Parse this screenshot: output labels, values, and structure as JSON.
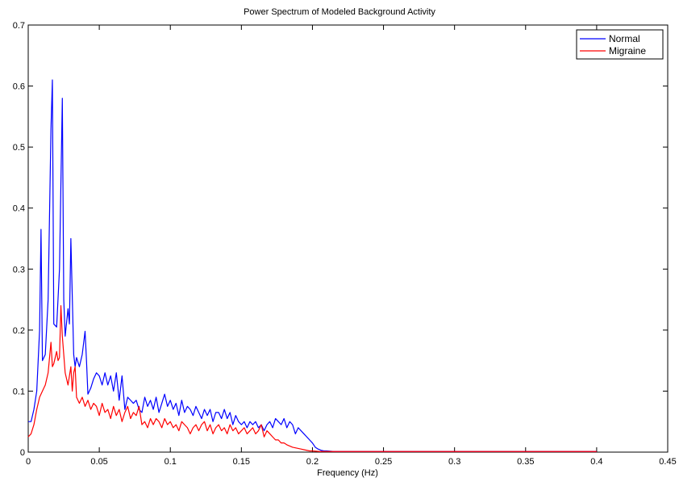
{
  "chart_data": {
    "type": "line",
    "title": "Power Spectrum of Modeled Background Activity",
    "xlabel": "Frequency (Hz)",
    "ylabel": "",
    "xlim": [
      0,
      0.45
    ],
    "ylim": [
      0,
      0.7
    ],
    "xticks": [
      0,
      0.05,
      0.1,
      0.15,
      0.2,
      0.25,
      0.3,
      0.35,
      0.4,
      0.45
    ],
    "xtick_labels": [
      "0",
      "0.05",
      "0.1",
      "0.15",
      "0.2",
      "0.25",
      "0.3",
      "0.35",
      "0.4",
      "0.45"
    ],
    "yticks": [
      0,
      0.1,
      0.2,
      0.3,
      0.4,
      0.5,
      0.6,
      0.7
    ],
    "ytick_labels": [
      "0",
      "0.1",
      "0.2",
      "0.3",
      "0.4",
      "0.5",
      "0.6",
      "0.7"
    ],
    "grid": false,
    "legend_position": "top-right",
    "series": [
      {
        "name": "Normal",
        "color": "#0000ff",
        "x": [
          0.0,
          0.002,
          0.004,
          0.006,
          0.008,
          0.009,
          0.01,
          0.012,
          0.014,
          0.016,
          0.017,
          0.018,
          0.02,
          0.022,
          0.024,
          0.025,
          0.026,
          0.028,
          0.029,
          0.03,
          0.032,
          0.033,
          0.034,
          0.036,
          0.038,
          0.04,
          0.041,
          0.042,
          0.044,
          0.046,
          0.048,
          0.05,
          0.052,
          0.054,
          0.056,
          0.058,
          0.06,
          0.062,
          0.064,
          0.066,
          0.068,
          0.07,
          0.072,
          0.074,
          0.076,
          0.078,
          0.08,
          0.082,
          0.084,
          0.086,
          0.088,
          0.09,
          0.092,
          0.094,
          0.096,
          0.098,
          0.1,
          0.102,
          0.104,
          0.106,
          0.108,
          0.11,
          0.112,
          0.114,
          0.116,
          0.118,
          0.12,
          0.122,
          0.124,
          0.126,
          0.128,
          0.13,
          0.132,
          0.134,
          0.136,
          0.138,
          0.14,
          0.142,
          0.144,
          0.146,
          0.148,
          0.15,
          0.152,
          0.154,
          0.156,
          0.158,
          0.16,
          0.162,
          0.164,
          0.166,
          0.168,
          0.17,
          0.172,
          0.174,
          0.176,
          0.178,
          0.18,
          0.182,
          0.184,
          0.186,
          0.188,
          0.19,
          0.192,
          0.194,
          0.196,
          0.198,
          0.2,
          0.202,
          0.204,
          0.206,
          0.208,
          0.21,
          0.215,
          0.22,
          0.23,
          0.25,
          0.3,
          0.35,
          0.4
        ],
        "y": [
          0.05,
          0.05,
          0.07,
          0.1,
          0.2,
          0.365,
          0.15,
          0.16,
          0.25,
          0.53,
          0.61,
          0.21,
          0.205,
          0.3,
          0.58,
          0.25,
          0.19,
          0.235,
          0.21,
          0.35,
          0.16,
          0.14,
          0.155,
          0.14,
          0.16,
          0.198,
          0.15,
          0.095,
          0.105,
          0.12,
          0.13,
          0.125,
          0.11,
          0.13,
          0.11,
          0.125,
          0.1,
          0.13,
          0.085,
          0.125,
          0.07,
          0.09,
          0.085,
          0.08,
          0.085,
          0.07,
          0.065,
          0.09,
          0.075,
          0.085,
          0.07,
          0.09,
          0.065,
          0.08,
          0.095,
          0.075,
          0.085,
          0.07,
          0.08,
          0.06,
          0.085,
          0.065,
          0.075,
          0.07,
          0.06,
          0.075,
          0.065,
          0.055,
          0.07,
          0.06,
          0.07,
          0.05,
          0.065,
          0.065,
          0.055,
          0.07,
          0.055,
          0.065,
          0.045,
          0.06,
          0.05,
          0.045,
          0.05,
          0.04,
          0.05,
          0.045,
          0.05,
          0.04,
          0.045,
          0.035,
          0.045,
          0.05,
          0.04,
          0.055,
          0.05,
          0.045,
          0.055,
          0.04,
          0.05,
          0.045,
          0.03,
          0.04,
          0.035,
          0.03,
          0.025,
          0.02,
          0.015,
          0.008,
          0.005,
          0.003,
          0.002,
          0.002,
          0.001,
          0.001,
          0.001,
          0.001,
          0.001,
          0.001,
          0.001
        ]
      },
      {
        "name": "Migraine",
        "color": "#ff0000",
        "x": [
          0.0,
          0.002,
          0.004,
          0.006,
          0.008,
          0.01,
          0.012,
          0.014,
          0.016,
          0.017,
          0.018,
          0.02,
          0.021,
          0.022,
          0.023,
          0.024,
          0.025,
          0.026,
          0.028,
          0.03,
          0.031,
          0.032,
          0.033,
          0.034,
          0.036,
          0.038,
          0.04,
          0.042,
          0.044,
          0.046,
          0.048,
          0.05,
          0.052,
          0.054,
          0.056,
          0.058,
          0.06,
          0.062,
          0.064,
          0.066,
          0.068,
          0.07,
          0.072,
          0.074,
          0.076,
          0.078,
          0.08,
          0.082,
          0.084,
          0.086,
          0.088,
          0.09,
          0.092,
          0.094,
          0.096,
          0.098,
          0.1,
          0.102,
          0.104,
          0.106,
          0.108,
          0.11,
          0.112,
          0.114,
          0.116,
          0.118,
          0.12,
          0.122,
          0.124,
          0.126,
          0.128,
          0.13,
          0.132,
          0.134,
          0.136,
          0.138,
          0.14,
          0.142,
          0.144,
          0.146,
          0.148,
          0.15,
          0.152,
          0.154,
          0.156,
          0.158,
          0.16,
          0.162,
          0.164,
          0.166,
          0.168,
          0.17,
          0.172,
          0.174,
          0.176,
          0.178,
          0.18,
          0.182,
          0.184,
          0.186,
          0.188,
          0.19,
          0.192,
          0.194,
          0.196,
          0.198,
          0.2,
          0.205,
          0.21,
          0.22,
          0.25,
          0.3,
          0.35,
          0.4
        ],
        "y": [
          0.025,
          0.03,
          0.045,
          0.07,
          0.09,
          0.1,
          0.11,
          0.13,
          0.18,
          0.14,
          0.145,
          0.165,
          0.15,
          0.155,
          0.24,
          0.19,
          0.16,
          0.13,
          0.11,
          0.14,
          0.1,
          0.13,
          0.14,
          0.09,
          0.08,
          0.09,
          0.075,
          0.085,
          0.07,
          0.08,
          0.075,
          0.06,
          0.08,
          0.065,
          0.07,
          0.055,
          0.075,
          0.06,
          0.07,
          0.05,
          0.065,
          0.075,
          0.055,
          0.065,
          0.06,
          0.075,
          0.045,
          0.05,
          0.04,
          0.055,
          0.045,
          0.055,
          0.05,
          0.04,
          0.055,
          0.045,
          0.05,
          0.04,
          0.045,
          0.035,
          0.05,
          0.045,
          0.04,
          0.03,
          0.04,
          0.045,
          0.035,
          0.045,
          0.05,
          0.035,
          0.045,
          0.03,
          0.04,
          0.045,
          0.035,
          0.04,
          0.03,
          0.045,
          0.035,
          0.04,
          0.03,
          0.035,
          0.04,
          0.03,
          0.035,
          0.04,
          0.03,
          0.035,
          0.045,
          0.025,
          0.035,
          0.03,
          0.025,
          0.02,
          0.02,
          0.015,
          0.015,
          0.012,
          0.01,
          0.008,
          0.007,
          0.006,
          0.005,
          0.004,
          0.003,
          0.002,
          0.002,
          0.001,
          0.001,
          0.001,
          0.001,
          0.001,
          0.001,
          0.001
        ]
      }
    ]
  }
}
